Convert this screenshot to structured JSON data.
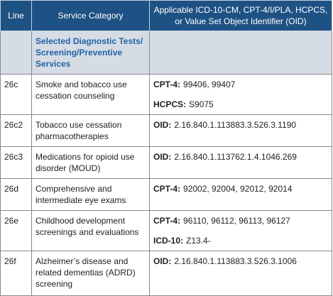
{
  "table": {
    "headers": [
      "Line",
      "Service Category",
      "Applicable ICD-10-CM, CPT-4/I/PLA, HCPCS, or Value Set Object Identifier (OID)"
    ],
    "section": "Selected Diagnostic Tests/ Screening/Preventive Services",
    "rows": [
      {
        "line": "26c",
        "category": "Smoke and tobacco use cessation counseling",
        "codes": [
          {
            "label": "CPT-4:",
            "text": "99406, 99407"
          },
          {
            "label": "HCPCS:",
            "text": "S9075"
          }
        ]
      },
      {
        "line": "26c2",
        "category": "Tobacco use cessation pharmacotherapies",
        "codes": [
          {
            "label": "OID:",
            "text": "2.16.840.1.113883.3.526.3.1190"
          }
        ]
      },
      {
        "line": "26c3",
        "category": "Medications for opioid use disorder (MOUD)",
        "codes": [
          {
            "label": "OID:",
            "text": "2.16.840.1.113762.1.4.1046.269"
          }
        ]
      },
      {
        "line": "26d",
        "category": "Comprehensive and intermediate eye exams",
        "codes": [
          {
            "label": "CPT-4:",
            "text": "92002, 92004, 92012, 92014"
          }
        ]
      },
      {
        "line": "26e",
        "category": "Childhood development screenings and evaluations",
        "codes": [
          {
            "label": "CPT-4:",
            "text": "96110, 96112, 96113, 96127"
          },
          {
            "label": "ICD-10:",
            "text": "Z13.4-"
          }
        ]
      },
      {
        "line": "26f",
        "category": "Alzheimer’s disease and related dementias (ADRD) screening",
        "codes": [
          {
            "label": "OID:",
            "text": "2.16.840.1.113883.3.526.3.1006"
          }
        ]
      }
    ]
  }
}
